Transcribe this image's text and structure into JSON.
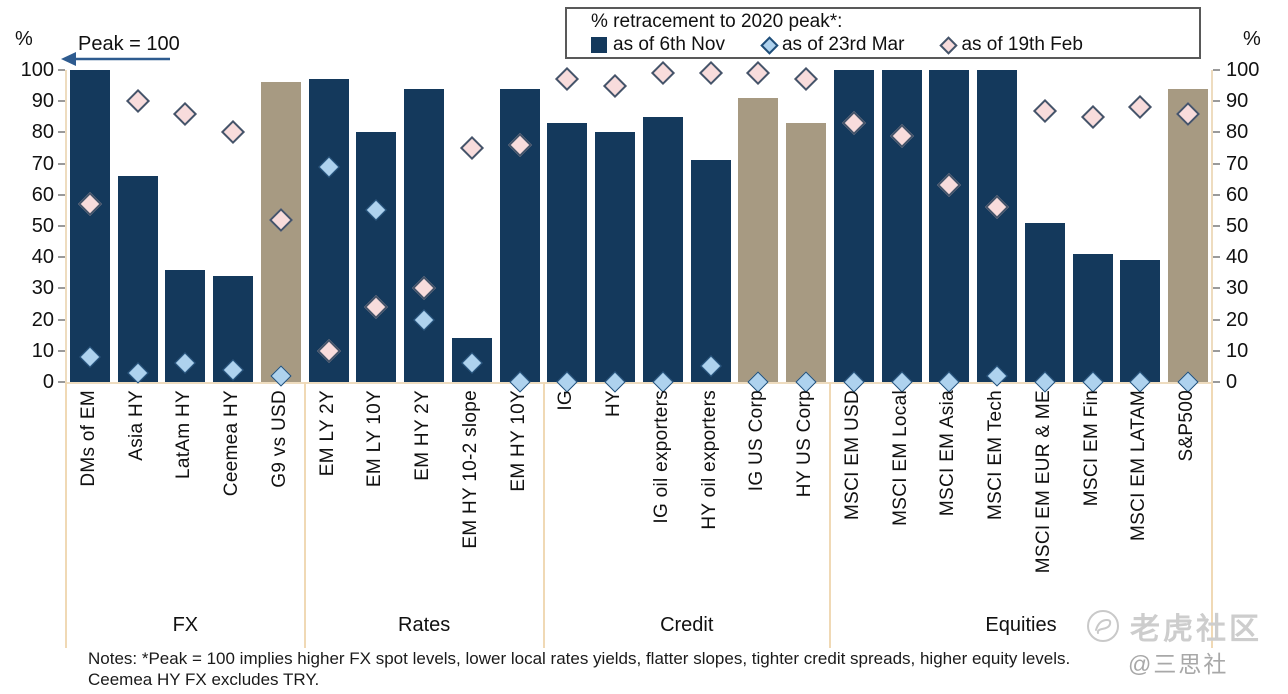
{
  "legend": {
    "title": "% retracement to 2020 peak*:",
    "series": [
      {
        "label": "as of 6th Nov",
        "marker": "square-icon",
        "fill": "#14395c",
        "border": "#14395c"
      },
      {
        "label": "as of 23rd Mar",
        "marker": "diamond-icon",
        "fill": "#aed2ee",
        "border": "#1f4e79"
      },
      {
        "label": "as of 19th Feb",
        "marker": "diamond-icon",
        "fill": "#f8dcdc",
        "border": "#44546a"
      }
    ]
  },
  "annotations": {
    "peak_label": "Peak = 100",
    "left_axis_unit": "%",
    "right_axis_unit": "%"
  },
  "notes": "Notes: *Peak = 100 implies higher FX spot levels, lower local rates yields, flatter slopes, tighter credit spreads, higher equity levels. Ceemea HY FX excludes TRY.",
  "watermark": {
    "brand": "老虎社区",
    "handle": "@三思社"
  },
  "colors": {
    "navy_bar": "#14395c",
    "tan_bar": "#a79a82",
    "mar_fill": "#aed2ee",
    "mar_border": "#1f4e79",
    "feb_fill": "#f8dcdc",
    "feb_border": "#44546a",
    "axis_line": "#eedcbf",
    "tick": "#9a9a9a",
    "arrow": "#2e5b8f"
  },
  "chart_data": {
    "type": "bar",
    "title": "% retracement to 2020 peak*:",
    "ylabel": "%",
    "ylim": [
      0,
      100
    ],
    "yticks": [
      0,
      10,
      20,
      30,
      40,
      50,
      60,
      70,
      80,
      90,
      100
    ],
    "legend_position": "top-right",
    "series_names": [
      "as of 6th Nov",
      "as of 23rd Mar",
      "as of 19th Feb"
    ],
    "groups": [
      {
        "name": "FX",
        "bars": [
          {
            "label": "DMs of EM",
            "nov": 100,
            "mar": 8,
            "feb": 57,
            "tan": false
          },
          {
            "label": "Asia HY",
            "nov": 66,
            "mar": 3,
            "feb": 90,
            "tan": false
          },
          {
            "label": "LatAm HY",
            "nov": 36,
            "mar": 6,
            "feb": 86,
            "tan": false
          },
          {
            "label": "Ceemea HY",
            "nov": 34,
            "mar": 4,
            "feb": 80,
            "tan": false
          },
          {
            "label": "G9 vs USD",
            "nov": 96,
            "mar": 2,
            "feb": 52,
            "tan": true
          }
        ]
      },
      {
        "name": "Rates",
        "bars": [
          {
            "label": "EM LY 2Y",
            "nov": 97,
            "mar": 69,
            "feb": 10,
            "tan": false
          },
          {
            "label": "EM LY 10Y",
            "nov": 80,
            "mar": 55,
            "feb": 24,
            "tan": false
          },
          {
            "label": "EM HY 2Y",
            "nov": 94,
            "mar": 20,
            "feb": 30,
            "tan": false
          },
          {
            "label": "EM HY 10-2 slope",
            "nov": 14,
            "mar": 6,
            "feb": 75,
            "tan": false
          },
          {
            "label": "EM HY 10Y",
            "nov": 94,
            "mar": 0,
            "feb": 76,
            "tan": false
          }
        ]
      },
      {
        "name": "Credit",
        "bars": [
          {
            "label": "IG",
            "nov": 83,
            "mar": 0,
            "feb": 97,
            "tan": false
          },
          {
            "label": "HY",
            "nov": 80,
            "mar": 0,
            "feb": 95,
            "tan": false
          },
          {
            "label": "IG oil exporters",
            "nov": 85,
            "mar": 0,
            "feb": 99,
            "tan": false
          },
          {
            "label": "HY oil exporters",
            "nov": 71,
            "mar": 5,
            "feb": 99,
            "tan": false
          },
          {
            "label": "IG US Corp",
            "nov": 91,
            "mar": 0,
            "feb": 99,
            "tan": true
          },
          {
            "label": "HY US Corp",
            "nov": 83,
            "mar": 0,
            "feb": 97,
            "tan": true
          }
        ]
      },
      {
        "name": "Equities",
        "bars": [
          {
            "label": "MSCI EM USD",
            "nov": 100,
            "mar": 0,
            "feb": 83,
            "tan": false
          },
          {
            "label": "MSCI EM Local",
            "nov": 100,
            "mar": 0,
            "feb": 79,
            "tan": false
          },
          {
            "label": "MSCI EM Asia",
            "nov": 100,
            "mar": 0,
            "feb": 63,
            "tan": false
          },
          {
            "label": "MSCI EM Tech",
            "nov": 100,
            "mar": 2,
            "feb": 56,
            "tan": false
          },
          {
            "label": "MSCI EM EUR & ME",
            "nov": 51,
            "mar": 0,
            "feb": 87,
            "tan": false
          },
          {
            "label": "MSCI EM Fin",
            "nov": 41,
            "mar": 0,
            "feb": 85,
            "tan": false
          },
          {
            "label": "MSCI EM LATAM",
            "nov": 39,
            "mar": 0,
            "feb": 88,
            "tan": false
          },
          {
            "label": "S&P500",
            "nov": 94,
            "mar": 0,
            "feb": 86,
            "tan": true
          }
        ]
      }
    ]
  }
}
